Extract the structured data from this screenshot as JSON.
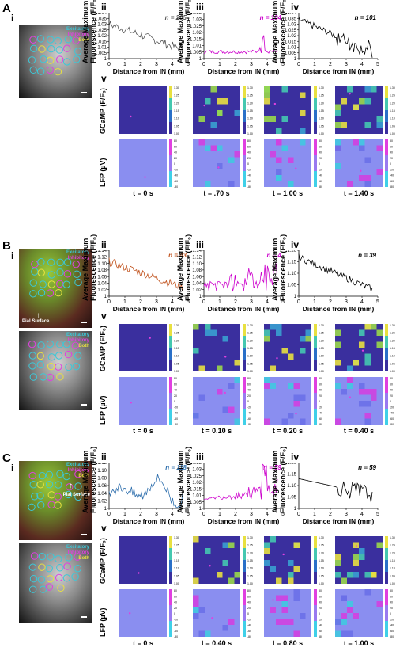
{
  "figure": {
    "blocks": [
      {
        "letter": "A",
        "micros": [
          {
            "legend": [
              "Excitatory",
              "Inhibitory",
              "Both"
            ],
            "annotations": []
          }
        ],
        "ylabel_line1": "Average Maximum",
        "ylabel_line2": "Fluorescence (F/F₀)",
        "xlabel": "Distance from IN (mm)",
        "map_rows": [
          "GCaMP (F/F₀)",
          "LFP (µV)"
        ],
        "times": [
          "t = 0 s",
          "t = .70 s",
          "t = 1.00 s",
          "t = 1.40 s"
        ],
        "charts": [
          {
            "roman": "ii",
            "n_label": "n = 205",
            "color": "#555555",
            "ylim": [
              1.0,
              1.04
            ],
            "yticks": [
              "1",
              "1.005",
              "1.01",
              "1.015",
              "1.02",
              "1.025",
              "1.03",
              "1.035",
              "1.04"
            ]
          },
          {
            "roman": "iii",
            "n_label": "n = 104",
            "color": "#cc00cc",
            "ylim": [
              1.0,
              1.035
            ],
            "yticks": [
              "1",
              "1.005",
              "1.01",
              "1.015",
              "1.02",
              "1.025",
              "1.03",
              "1.035"
            ]
          },
          {
            "roman": "iv",
            "n_label": "n = 101",
            "color": "#000000",
            "ylim": [
              1.0,
              1.04
            ],
            "yticks": [
              "1",
              "1.005",
              "1.01",
              "1.015",
              "1.02",
              "1.025",
              "1.03",
              "1.035",
              "1.04"
            ]
          }
        ]
      },
      {
        "letter": "B",
        "micros": [
          {
            "legend": [
              "Excitatory",
              "Inhibitory"
            ],
            "annotations": [
              "Pial Surface"
            ]
          },
          {
            "legend": [
              "Excitatory",
              "Inhibitory",
              "Both"
            ],
            "annotations": []
          }
        ],
        "ylabel_line1": "Average Maximum",
        "ylabel_line2": "Fluorescence (F/F₀)",
        "xlabel": "Distance from IN (mm)",
        "map_rows": [
          "GCaMP (F/F₀)",
          "LFP (µV)"
        ],
        "times": [
          "t = 0 s",
          "t = 0.10 s",
          "t = 0.20 s",
          "t = 0.40 s"
        ],
        "charts": [
          {
            "roman": "ii",
            "n_label": "n = 43",
            "color": "#c0501a",
            "ylim": [
              1.0,
              1.14
            ],
            "yticks": [
              "1",
              "1.02",
              "1.04",
              "1.06",
              "1.08",
              "1.10",
              "1.12",
              "1.14"
            ]
          },
          {
            "roman": "iii",
            "n_label": "n = 4",
            "color": "#cc00cc",
            "ylim": [
              1.0,
              1.14
            ],
            "yticks": [
              "1",
              "1.02",
              "1.04",
              "1.06",
              "1.08",
              "1.10",
              "1.12",
              "1.14"
            ]
          },
          {
            "roman": "iv",
            "n_label": "n = 39",
            "color": "#000000",
            "ylim": [
              1.0,
              1.2
            ],
            "yticks": [
              "1",
              "1.05",
              "1.10",
              "1.15",
              "1.20"
            ]
          }
        ]
      },
      {
        "letter": "C",
        "micros": [
          {
            "legend": [
              "Excitatory",
              "Inhibitory",
              "Both"
            ],
            "annotations": [
              "Pial Surface"
            ]
          },
          {
            "legend": [
              "Excitatory",
              "Inhibitory",
              "Both"
            ],
            "annotations": []
          }
        ],
        "ylabel_line1": "Average Maximum",
        "ylabel_line2": "Fluorescence (F/F₀)",
        "xlabel": "Distance from IN (mm)",
        "map_rows": [
          "GCaMP (F/F₀)",
          "LFP (µV)"
        ],
        "times": [
          "t = 0 s",
          "t = 0.40 s",
          "t = 0.80 s",
          "t = 1.00 s"
        ],
        "charts": [
          {
            "roman": "ii",
            "n_label": "n = 118",
            "color": "#2f6fad",
            "ylim": [
              1.0,
              1.12
            ],
            "yticks": [
              "1",
              "1.02",
              "1.04",
              "1.06",
              "1.08",
              "1.10",
              "1.12"
            ]
          },
          {
            "roman": "iii",
            "n_label": "n = 59",
            "color": "#cc00cc",
            "ylim": [
              1.0,
              1.035
            ],
            "yticks": [
              "1",
              "1.005",
              "1.01",
              "1.015",
              "1.02",
              "1.025",
              "1.03",
              "1.035"
            ]
          },
          {
            "roman": "iv",
            "n_label": "n = 59",
            "color": "#000000",
            "ylim": [
              1.0,
              1.2
            ],
            "yticks": [
              "1",
              "1.05",
              "1.10",
              "1.15",
              "1.20"
            ]
          }
        ]
      }
    ],
    "xticks": [
      "0",
      "1",
      "2",
      "3",
      "4",
      "5"
    ],
    "xlim": [
      0,
      5
    ],
    "gcamp_scale": [
      "1.30",
      "1.25",
      "1.20",
      "1.15",
      "1.10",
      "1.05",
      "1.00"
    ],
    "lfp_scale": [
      "80",
      "60",
      "40",
      "20",
      "0",
      "-20",
      "-40",
      "-60",
      "-80"
    ],
    "colors": {
      "excitatory": "#3cc8d8",
      "inhibitory": "#e040e0",
      "both": "#e8e040",
      "map_bg": "#3a2f9e"
    }
  }
}
